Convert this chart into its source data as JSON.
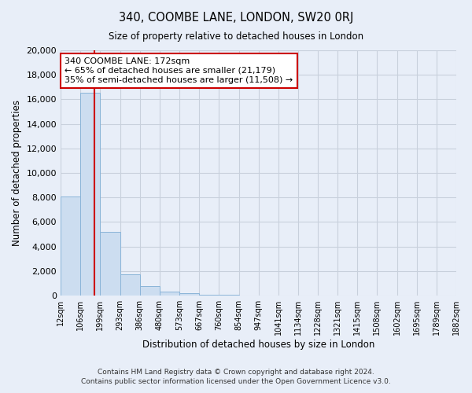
{
  "title": "340, COOMBE LANE, LONDON, SW20 0RJ",
  "subtitle": "Size of property relative to detached houses in London",
  "xlabel": "Distribution of detached houses by size in London",
  "ylabel": "Number of detached properties",
  "bin_labels": [
    "12sqm",
    "106sqm",
    "199sqm",
    "293sqm",
    "386sqm",
    "480sqm",
    "573sqm",
    "667sqm",
    "760sqm",
    "854sqm",
    "947sqm",
    "1041sqm",
    "1134sqm",
    "1228sqm",
    "1321sqm",
    "1415sqm",
    "1508sqm",
    "1602sqm",
    "1695sqm",
    "1789sqm",
    "1882sqm"
  ],
  "bin_edges": [
    12,
    106,
    199,
    293,
    386,
    480,
    573,
    667,
    760,
    854,
    947,
    1041,
    1134,
    1228,
    1321,
    1415,
    1508,
    1602,
    1695,
    1789,
    1882
  ],
  "bar_heights": [
    8050,
    16550,
    5200,
    1750,
    750,
    300,
    200,
    100,
    80,
    0,
    0,
    0,
    0,
    0,
    0,
    0,
    0,
    0,
    0,
    0
  ],
  "bar_color": "#ccddf0",
  "bar_edge_color": "#8ab4d8",
  "property_size": 172,
  "annotation_title": "340 COOMBE LANE: 172sqm",
  "annotation_line1": "← 65% of detached houses are smaller (21,179)",
  "annotation_line2": "35% of semi-detached houses are larger (11,508) →",
  "annotation_box_color": "#ffffff",
  "annotation_box_edge": "#cc0000",
  "red_line_color": "#cc0000",
  "ylim": [
    0,
    20000
  ],
  "yticks": [
    0,
    2000,
    4000,
    6000,
    8000,
    10000,
    12000,
    14000,
    16000,
    18000,
    20000
  ],
  "grid_color": "#c8d0dc",
  "background_color": "#e8eef8",
  "footer_line1": "Contains HM Land Registry data © Crown copyright and database right 2024.",
  "footer_line2": "Contains public sector information licensed under the Open Government Licence v3.0."
}
